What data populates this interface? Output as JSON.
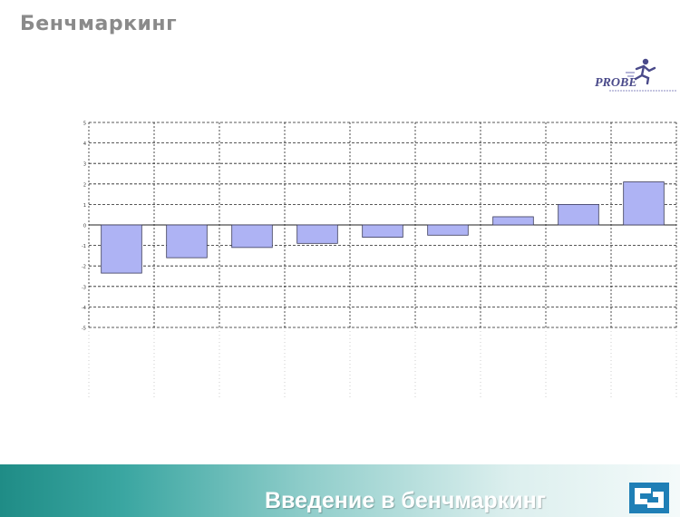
{
  "slide": {
    "title": "Бенчмаркинг",
    "footer_title": "Введение в бенчмаркинг"
  },
  "logo": {
    "text": "PROBE"
  },
  "colors": {
    "bar_fill": "#aeb3f4",
    "bar_stroke": "#3a3a5a",
    "grid": "#222222",
    "footer_start": "#1f8c86",
    "footer_end": "#f4fafa",
    "logo_text": "#4a4a8a"
  },
  "chart_data": {
    "type": "bar",
    "title": "",
    "xlabel": "",
    "ylabel": "",
    "ylim": [
      -5,
      5
    ],
    "yticks": [
      5,
      4,
      3,
      2,
      1,
      0,
      -1,
      -2,
      -3,
      -4,
      -5
    ],
    "values": [
      -2.35,
      -1.6,
      -1.1,
      -0.9,
      -0.6,
      -0.5,
      0.4,
      1.0,
      2.1
    ],
    "grid": true,
    "legend": "none"
  }
}
